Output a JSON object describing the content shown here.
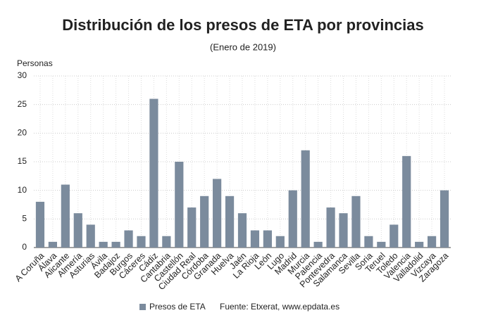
{
  "chart_data": {
    "type": "bar",
    "title": "Distribución de los presos de ETA por provincias",
    "subtitle": "(Enero de 2019)",
    "y_label": "Personas",
    "source": "Fuente: Etxerat, www.epdata.es",
    "categories": [
      "A Coruña",
      "Álava",
      "Alicante",
      "Almería",
      "Asturias",
      "Ávila",
      "Badajoz",
      "Burgos",
      "Cáceres",
      "Cádiz",
      "Cantabria",
      "Castellón",
      "Ciudad Real",
      "Córdoba",
      "Granada",
      "Huelva",
      "Jaén",
      "La Rioja",
      "León",
      "Lugo",
      "Madrid",
      "Murcia",
      "Palencia",
      "Pontevedra",
      "Salamanca",
      "Sevilla",
      "Soria",
      "Teruel",
      "Toledo",
      "Valencia",
      "Valladolid",
      "Vizcaya",
      "Zaragoza"
    ],
    "series": [
      {
        "name": "Presos de ETA",
        "color": "#7b8b9d",
        "values": [
          8,
          1,
          11,
          6,
          4,
          1,
          1,
          3,
          2,
          26,
          2,
          15,
          7,
          9,
          12,
          9,
          6,
          3,
          3,
          2,
          10,
          17,
          1,
          7,
          6,
          9,
          2,
          1,
          4,
          16,
          1,
          2,
          10
        ]
      }
    ],
    "ylim": [
      0,
      30
    ],
    "yticks": [
      0,
      5,
      10,
      15,
      20,
      25,
      30
    ],
    "grid": true
  }
}
